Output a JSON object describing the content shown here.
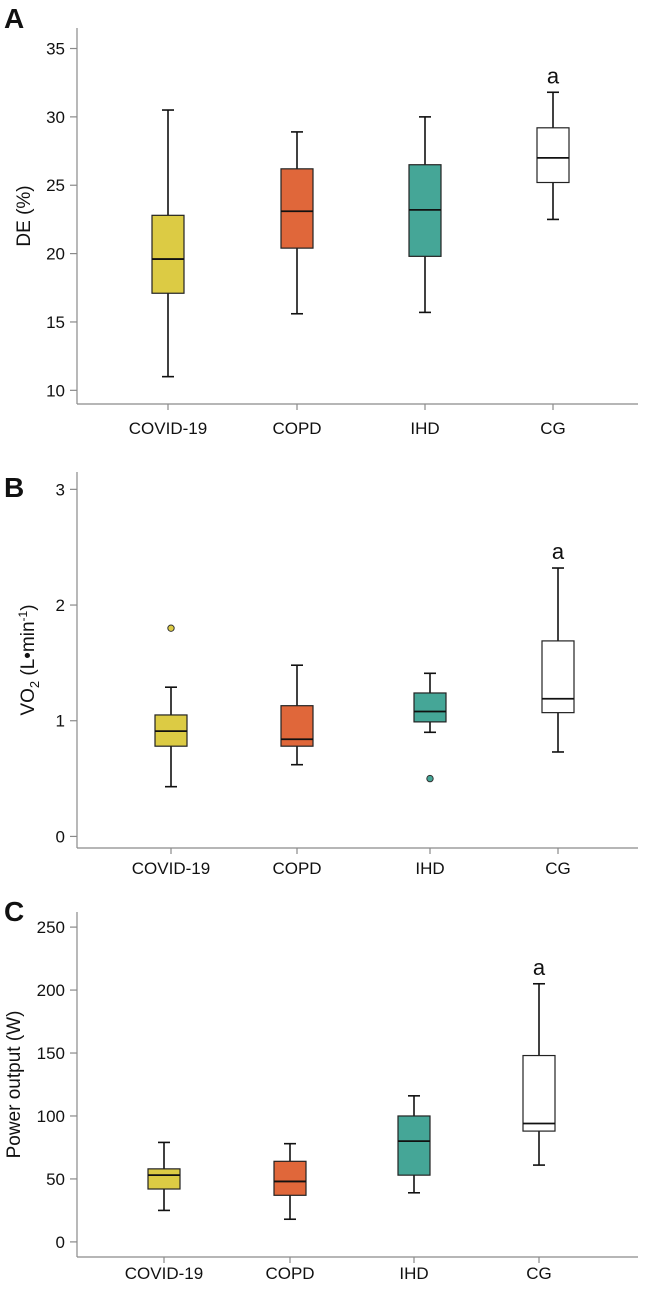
{
  "chart_data": [
    {
      "panel": "A",
      "type": "box",
      "ylabel": "DE  (%)",
      "ylabel_sub": "",
      "ylabel_sup": "",
      "ylabel_tail": "",
      "categories": [
        "COVID-19",
        "COPD",
        "IHD",
        "CG"
      ],
      "yticks": [
        10,
        15,
        20,
        25,
        30,
        35
      ],
      "ylim": [
        9,
        36.5
      ],
      "boxes": [
        {
          "name": "COVID-19",
          "whisker_low": 11.0,
          "q1": 17.1,
          "median": 19.6,
          "q3": 22.8,
          "whisker_high": 30.5,
          "outliers": [],
          "color": "#dccb44"
        },
        {
          "name": "COPD",
          "whisker_low": 15.6,
          "q1": 20.4,
          "median": 23.1,
          "q3": 26.2,
          "whisker_high": 28.9,
          "outliers": [],
          "color": "#e0673a"
        },
        {
          "name": "IHD",
          "whisker_low": 15.7,
          "q1": 19.8,
          "median": 23.2,
          "q3": 26.5,
          "whisker_high": 30.0,
          "outliers": [],
          "color": "#45a697"
        },
        {
          "name": "CG",
          "whisker_low": 22.5,
          "q1": 25.2,
          "median": 27.0,
          "q3": 29.2,
          "whisker_high": 31.8,
          "outliers": [],
          "color": "#ffffff"
        }
      ],
      "annotations": [
        {
          "category": "CG",
          "text": "a"
        }
      ]
    },
    {
      "panel": "B",
      "type": "box",
      "ylabel": "VO",
      "ylabel_sub": "2",
      "ylabel_mid": " (L•min",
      "ylabel_sup": "-1",
      "ylabel_tail": ")",
      "categories": [
        "COVID-19",
        "COPD",
        "IHD",
        "CG"
      ],
      "yticks": [
        0,
        1,
        2,
        3
      ],
      "ylim": [
        -0.1,
        3.15
      ],
      "boxes": [
        {
          "name": "COVID-19",
          "whisker_low": 0.43,
          "q1": 0.78,
          "median": 0.91,
          "q3": 1.05,
          "whisker_high": 1.29,
          "outliers": [
            1.8
          ],
          "color": "#dccb44"
        },
        {
          "name": "COPD",
          "whisker_low": 0.62,
          "q1": 0.78,
          "median": 0.84,
          "q3": 1.13,
          "whisker_high": 1.48,
          "outliers": [],
          "color": "#e0673a"
        },
        {
          "name": "IHD",
          "whisker_low": 0.9,
          "q1": 0.99,
          "median": 1.08,
          "q3": 1.24,
          "whisker_high": 1.41,
          "outliers": [
            0.5
          ],
          "color": "#45a697"
        },
        {
          "name": "CG",
          "whisker_low": 0.73,
          "q1": 1.07,
          "median": 1.19,
          "q3": 1.69,
          "whisker_high": 2.32,
          "outliers": [],
          "color": "#ffffff"
        }
      ],
      "annotations": [
        {
          "category": "CG",
          "text": "a"
        }
      ]
    },
    {
      "panel": "C",
      "type": "box",
      "ylabel": "Power output (W)",
      "ylabel_sub": "",
      "ylabel_sup": "",
      "ylabel_tail": "",
      "categories": [
        "COVID-19",
        "COPD",
        "IHD",
        "CG"
      ],
      "yticks": [
        0,
        50,
        100,
        150,
        200,
        250
      ],
      "ylim": [
        -12,
        262
      ],
      "boxes": [
        {
          "name": "COVID-19",
          "whisker_low": 25,
          "q1": 42,
          "median": 53,
          "q3": 58,
          "whisker_high": 79,
          "outliers": [],
          "color": "#dccb44"
        },
        {
          "name": "COPD",
          "whisker_low": 18,
          "q1": 37,
          "median": 48,
          "q3": 64,
          "whisker_high": 78,
          "outliers": [],
          "color": "#e0673a"
        },
        {
          "name": "IHD",
          "whisker_low": 39,
          "q1": 53,
          "median": 80,
          "q3": 100,
          "whisker_high": 116,
          "outliers": [],
          "color": "#45a697"
        },
        {
          "name": "CG",
          "whisker_low": 61,
          "q1": 88,
          "median": 94,
          "q3": 148,
          "whisker_high": 205,
          "outliers": [],
          "color": "#ffffff"
        }
      ],
      "annotations": [
        {
          "category": "CG",
          "text": "a"
        }
      ]
    }
  ]
}
